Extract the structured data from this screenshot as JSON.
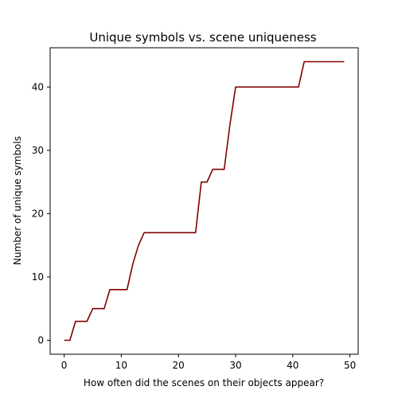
{
  "chart_data": {
    "type": "line",
    "title": "Unique symbols vs. scene uniqueness",
    "xlabel": "How often did the scenes on their objects appear?",
    "ylabel": "Number of unique symbols",
    "xlim": [
      -2.45,
      51.45
    ],
    "ylim": [
      -2.2,
      46.2
    ],
    "xticks": [
      0,
      10,
      20,
      30,
      40,
      50
    ],
    "yticks": [
      0,
      10,
      20,
      30,
      40
    ],
    "grid": false,
    "series": [
      {
        "color": "#800000",
        "x": [
          0,
          1,
          2,
          3,
          4,
          5,
          6,
          7,
          8,
          9,
          10,
          11,
          12,
          13,
          14,
          15,
          16,
          17,
          18,
          19,
          20,
          21,
          22,
          23,
          24,
          25,
          26,
          27,
          28,
          29,
          30,
          31,
          32,
          33,
          34,
          35,
          36,
          37,
          38,
          39,
          40,
          41,
          42,
          43,
          44,
          45,
          46,
          47,
          48,
          49
        ],
        "y": [
          0,
          0,
          3,
          3,
          3,
          5,
          5,
          5,
          8,
          8,
          8,
          8,
          12,
          15,
          17,
          17,
          17,
          17,
          17,
          17,
          17,
          17,
          17,
          17,
          25,
          25,
          27,
          27,
          27,
          34,
          40,
          40,
          40,
          40,
          40,
          40,
          40,
          40,
          40,
          40,
          40,
          40,
          44,
          44,
          44,
          44,
          44,
          44,
          44,
          44
        ]
      }
    ]
  }
}
